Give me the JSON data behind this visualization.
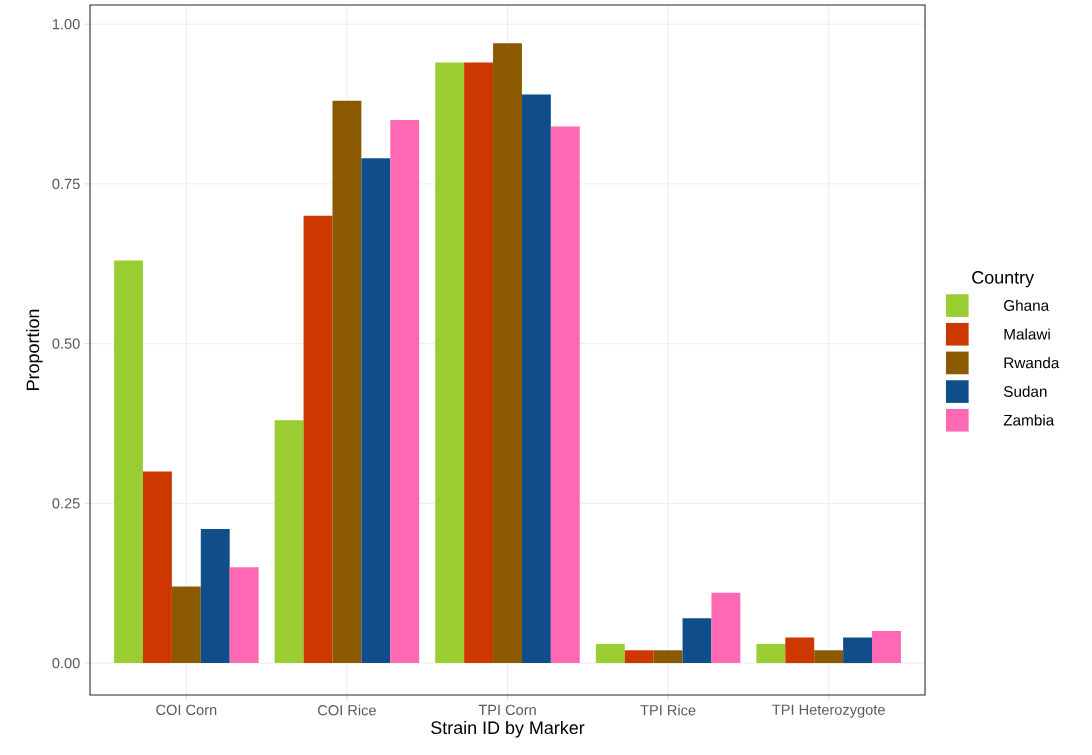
{
  "chart_data": {
    "type": "bar",
    "xlabel": "Strain ID by Marker",
    "ylabel": "Proportion",
    "legend_title": "Country",
    "categories": [
      "COI Corn",
      "COI Rice",
      "TPI Corn",
      "TPI Rice",
      "TPI Heterozygote"
    ],
    "series": [
      {
        "name": "Ghana",
        "color": "#9acd32",
        "values": [
          0.63,
          0.38,
          0.94,
          0.03,
          0.03
        ]
      },
      {
        "name": "Malawi",
        "color": "#cd3700",
        "values": [
          0.3,
          0.7,
          0.94,
          0.02,
          0.04
        ]
      },
      {
        "name": "Rwanda",
        "color": "#8b5a00",
        "values": [
          0.12,
          0.88,
          0.97,
          0.02,
          0.02
        ]
      },
      {
        "name": "Sudan",
        "color": "#104e8b",
        "values": [
          0.21,
          0.79,
          0.89,
          0.07,
          0.04
        ]
      },
      {
        "name": "Zambia",
        "color": "#ff69b4",
        "values": [
          0.15,
          0.85,
          0.84,
          0.11,
          0.05
        ]
      }
    ],
    "ylim": [
      -0.05,
      1.03
    ],
    "yticks": [
      {
        "value": 0,
        "label": "0.00"
      },
      {
        "value": 0.25,
        "label": "0.25"
      },
      {
        "value": 0.5,
        "label": "0.50"
      },
      {
        "value": 0.75,
        "label": "0.75"
      },
      {
        "value": 1,
        "label": "1.00"
      }
    ],
    "grid": true,
    "legend": "right"
  }
}
